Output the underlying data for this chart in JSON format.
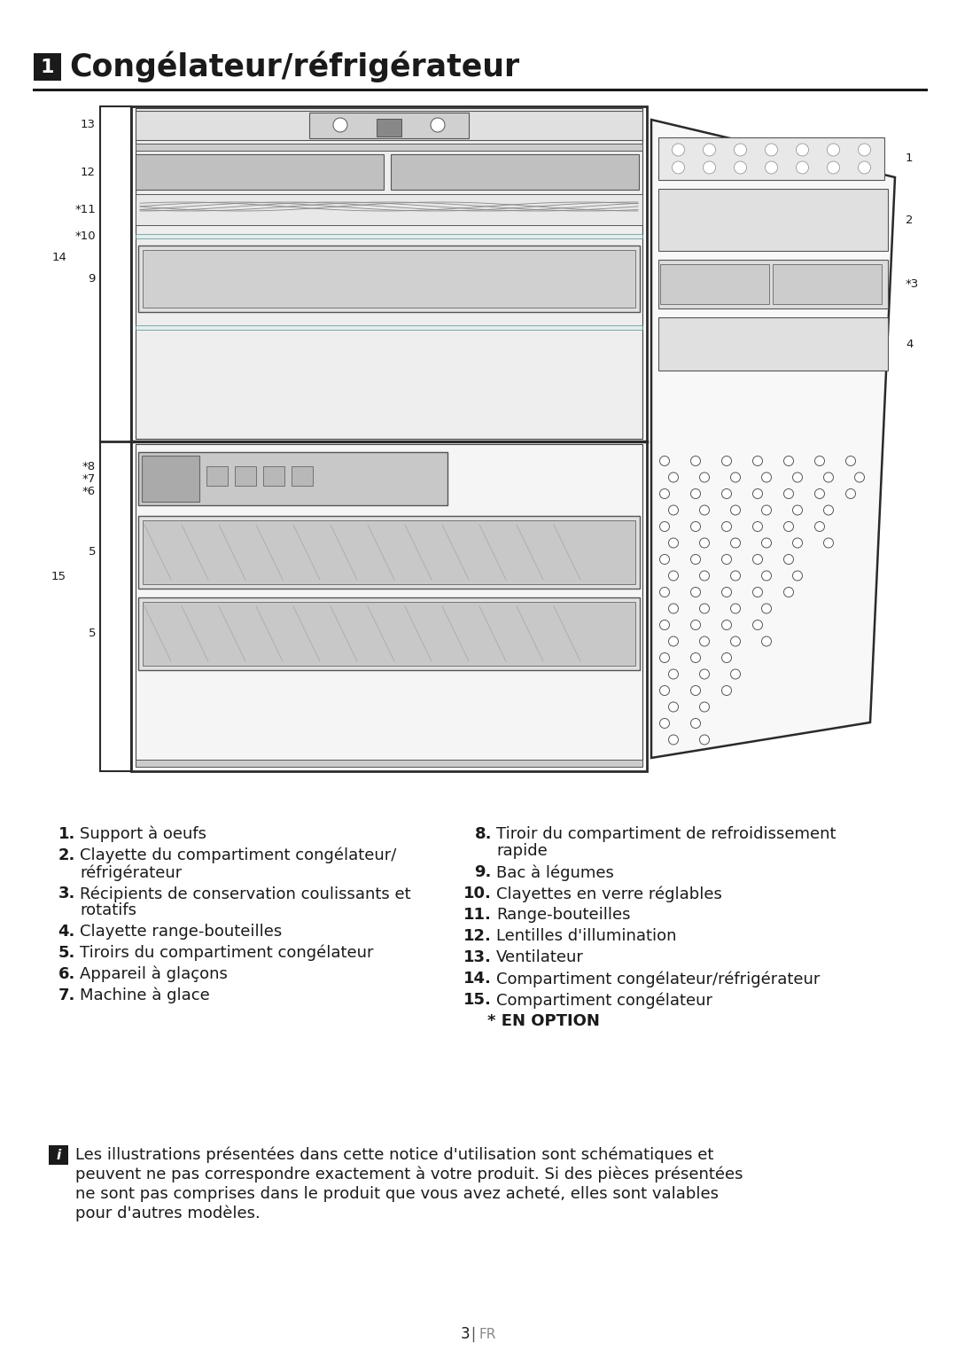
{
  "title_number": "1",
  "title_text": "Congélateur/réfrigérateur",
  "bg_color": "#ffffff",
  "title_fontsize": 25,
  "left_list": [
    {
      "num": "1.",
      "text": "Support à oeufs"
    },
    {
      "num": "2.",
      "text": "Clayette du compartiment congélateur/\nréfrigérateur"
    },
    {
      "num": "3.",
      "text": "Récipients de conservation coulissants et\nrotatifs"
    },
    {
      "num": "4.",
      "text": "Clayette range-bouteilles"
    },
    {
      "num": "5.",
      "text": "Tiroirs du compartiment congélateur"
    },
    {
      "num": "6.",
      "text": "Appareil à glaçons"
    },
    {
      "num": "7.",
      "text": "Machine à glace"
    }
  ],
  "right_list": [
    {
      "num": "8.",
      "text": "Tiroir du compartiment de refroidissement\nrapide"
    },
    {
      "num": "9.",
      "text": "Bac à légumes"
    },
    {
      "num": "10.",
      "text": "Clayettes en verre réglables"
    },
    {
      "num": "11.",
      "text": "Range-bouteilles"
    },
    {
      "num": "12.",
      "text": "Lentilles d'illumination"
    },
    {
      "num": "13.",
      "text": "Ventilateur"
    },
    {
      "num": "14.",
      "text": "Compartiment congélateur/réfrigérateur"
    },
    {
      "num": "15.",
      "text": "Compartiment congélateur"
    },
    {
      "num": "*",
      "text": "EN OPTION",
      "bold": true
    }
  ],
  "note_lines": [
    "Les illustrations présentées dans cette notice d'utilisation sont schématiques et",
    "peuvent ne pas correspondre exactement à votre produit. Si des pièces présentées",
    "ne sont pas comprises dans le produit que vous avez acheté, elles sont valables",
    "pour d'autres modèles."
  ],
  "page_number": "3",
  "page_lang": "FR",
  "list_fontsize": 13.0,
  "note_fontsize": 13.0
}
